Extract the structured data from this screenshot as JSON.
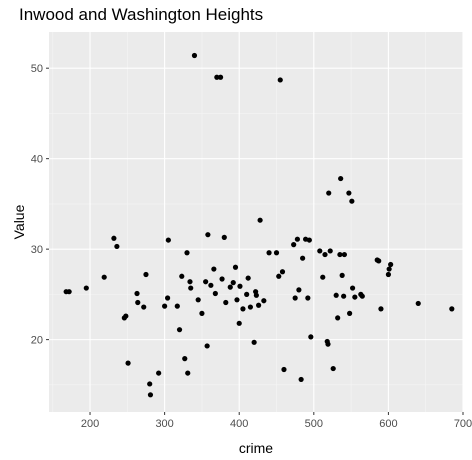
{
  "chart_data": {
    "type": "scatter",
    "title": "Inwood and Washington Heights",
    "xlabel": "crime",
    "ylabel": "Value",
    "xlim": [
      145,
      700
    ],
    "ylim": [
      12,
      54
    ],
    "x_ticks": [
      200,
      300,
      400,
      500,
      600,
      700
    ],
    "y_ticks": [
      20,
      30,
      40,
      50
    ],
    "grid": true,
    "background": "#ebebeb",
    "grid_major_color": "#ffffff",
    "point_color": "#000000",
    "points": [
      {
        "x": 168,
        "y": 25.3
      },
      {
        "x": 172,
        "y": 25.3
      },
      {
        "x": 195,
        "y": 25.7
      },
      {
        "x": 219,
        "y": 26.9
      },
      {
        "x": 232,
        "y": 31.2
      },
      {
        "x": 236,
        "y": 30.3
      },
      {
        "x": 246,
        "y": 22.4
      },
      {
        "x": 248,
        "y": 22.6
      },
      {
        "x": 251,
        "y": 17.4
      },
      {
        "x": 263,
        "y": 25.1
      },
      {
        "x": 264,
        "y": 24.1
      },
      {
        "x": 272,
        "y": 23.6
      },
      {
        "x": 275,
        "y": 27.2
      },
      {
        "x": 280,
        "y": 15.1
      },
      {
        "x": 281,
        "y": 13.9
      },
      {
        "x": 292,
        "y": 16.3
      },
      {
        "x": 300,
        "y": 23.7
      },
      {
        "x": 304,
        "y": 24.6
      },
      {
        "x": 305,
        "y": 31.0
      },
      {
        "x": 317,
        "y": 23.7
      },
      {
        "x": 320,
        "y": 21.1
      },
      {
        "x": 323,
        "y": 27.0
      },
      {
        "x": 327,
        "y": 17.9
      },
      {
        "x": 330,
        "y": 29.6
      },
      {
        "x": 331,
        "y": 16.3
      },
      {
        "x": 334,
        "y": 26.4
      },
      {
        "x": 335,
        "y": 25.7
      },
      {
        "x": 340,
        "y": 51.4
      },
      {
        "x": 345,
        "y": 24.4
      },
      {
        "x": 350,
        "y": 22.9
      },
      {
        "x": 355,
        "y": 26.4
      },
      {
        "x": 357,
        "y": 19.3
      },
      {
        "x": 358,
        "y": 31.6
      },
      {
        "x": 362,
        "y": 26.0
      },
      {
        "x": 366,
        "y": 27.8
      },
      {
        "x": 368,
        "y": 25.1
      },
      {
        "x": 370,
        "y": 49.0
      },
      {
        "x": 375,
        "y": 49.0
      },
      {
        "x": 377,
        "y": 26.7
      },
      {
        "x": 380,
        "y": 31.3
      },
      {
        "x": 382,
        "y": 24.1
      },
      {
        "x": 388,
        "y": 25.8
      },
      {
        "x": 392,
        "y": 26.3
      },
      {
        "x": 395,
        "y": 28.0
      },
      {
        "x": 397,
        "y": 24.4
      },
      {
        "x": 400,
        "y": 21.8
      },
      {
        "x": 401,
        "y": 25.9
      },
      {
        "x": 405,
        "y": 23.4
      },
      {
        "x": 410,
        "y": 25.0
      },
      {
        "x": 412,
        "y": 26.8
      },
      {
        "x": 415,
        "y": 23.6
      },
      {
        "x": 420,
        "y": 19.7
      },
      {
        "x": 422,
        "y": 25.3
      },
      {
        "x": 423,
        "y": 24.9
      },
      {
        "x": 426,
        "y": 23.8
      },
      {
        "x": 428,
        "y": 33.2
      },
      {
        "x": 433,
        "y": 24.3
      },
      {
        "x": 440,
        "y": 29.6
      },
      {
        "x": 450,
        "y": 29.6
      },
      {
        "x": 453,
        "y": 27.0
      },
      {
        "x": 455,
        "y": 48.7
      },
      {
        "x": 458,
        "y": 27.5
      },
      {
        "x": 460,
        "y": 16.7
      },
      {
        "x": 473,
        "y": 30.5
      },
      {
        "x": 475,
        "y": 24.6
      },
      {
        "x": 478,
        "y": 31.1
      },
      {
        "x": 480,
        "y": 25.5
      },
      {
        "x": 483,
        "y": 15.6
      },
      {
        "x": 485,
        "y": 29.0
      },
      {
        "x": 489,
        "y": 31.1
      },
      {
        "x": 492,
        "y": 24.6
      },
      {
        "x": 494,
        "y": 31.0
      },
      {
        "x": 496,
        "y": 20.3
      },
      {
        "x": 508,
        "y": 29.8
      },
      {
        "x": 512,
        "y": 26.9
      },
      {
        "x": 515,
        "y": 29.4
      },
      {
        "x": 518,
        "y": 19.8
      },
      {
        "x": 519,
        "y": 19.5
      },
      {
        "x": 520,
        "y": 36.2
      },
      {
        "x": 522,
        "y": 29.8
      },
      {
        "x": 526,
        "y": 16.8
      },
      {
        "x": 530,
        "y": 24.9
      },
      {
        "x": 532,
        "y": 22.4
      },
      {
        "x": 535,
        "y": 29.4
      },
      {
        "x": 536,
        "y": 37.8
      },
      {
        "x": 538,
        "y": 27.1
      },
      {
        "x": 540,
        "y": 24.8
      },
      {
        "x": 541,
        "y": 29.4
      },
      {
        "x": 547,
        "y": 36.2
      },
      {
        "x": 548,
        "y": 22.9
      },
      {
        "x": 551,
        "y": 35.3
      },
      {
        "x": 552,
        "y": 25.7
      },
      {
        "x": 555,
        "y": 24.7
      },
      {
        "x": 563,
        "y": 25.0
      },
      {
        "x": 565,
        "y": 24.8
      },
      {
        "x": 585,
        "y": 28.8
      },
      {
        "x": 587,
        "y": 28.7
      },
      {
        "x": 590,
        "y": 23.4
      },
      {
        "x": 600,
        "y": 27.2
      },
      {
        "x": 601,
        "y": 27.8
      },
      {
        "x": 603,
        "y": 28.3
      },
      {
        "x": 640,
        "y": 24.0
      },
      {
        "x": 685,
        "y": 23.4
      }
    ]
  }
}
